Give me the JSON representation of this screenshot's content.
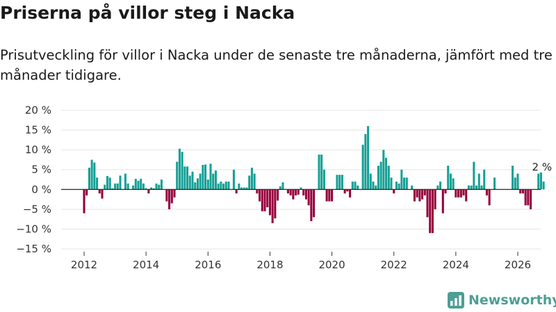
{
  "header": {
    "title": "Priserna på villor steg i Nacka",
    "subtitle": "Prisutveckling för villor i Nacka under de senaste tre månaderna, jämfört med tre månader tidigare."
  },
  "brand": {
    "name": "Newsworthy"
  },
  "colors": {
    "positive": "#16a096",
    "negative": "#96003c",
    "grid": "#e5e5e5",
    "zero": "#222222",
    "brand": "#4d9e95"
  },
  "chart_data": {
    "type": "bar",
    "title": "Priserna på villor steg i Nacka",
    "xlabel": "",
    "ylabel": "",
    "ylim": [
      -15,
      20
    ],
    "yticks": [
      20,
      15,
      10,
      5,
      0,
      -5,
      -10,
      -15
    ],
    "ytick_labels": [
      "20 %",
      "15 %",
      "10 %",
      "5 %",
      "0 %",
      "−5 %",
      "−10 %",
      "−15 %"
    ],
    "xticks": [
      2012,
      2014,
      2016,
      2018,
      2020,
      2022,
      2024,
      2026
    ],
    "xtick_labels": [
      "2012",
      "2014",
      "2016",
      "2018",
      "2020",
      "2022",
      "2024",
      "2026"
    ],
    "x_start": "2012-01",
    "x_interval": "month",
    "values": [
      -6,
      -1.5,
      5.5,
      7.5,
      6.8,
      3,
      -1,
      -2.3,
      1.2,
      3.4,
      3,
      0.3,
      1.5,
      1.5,
      3.5,
      0,
      4,
      1.5,
      0,
      1,
      2.7,
      2.2,
      2.7,
      1.5,
      0.3,
      -1,
      0.5,
      0.3,
      1.5,
      1.2,
      2.5,
      0,
      -3,
      -5,
      -3.5,
      -2,
      7,
      10.3,
      9.5,
      5.8,
      5.8,
      3.5,
      4.5,
      1.8,
      2.8,
      4,
      6.2,
      6.3,
      2.5,
      6.5,
      4,
      4.8,
      1.5,
      2,
      1.5,
      2,
      2,
      0,
      5,
      -1,
      1.5,
      0.5,
      0.5,
      0.5,
      3.5,
      5.5,
      4,
      -1,
      -3,
      -5.5,
      -5.5,
      -4.5,
      -6.5,
      -8.5,
      -7.3,
      -2.8,
      0.8,
      1.8,
      0,
      -1,
      -1.5,
      -2.5,
      -1.5,
      -1.3,
      0.5,
      -1.5,
      -2.5,
      -4,
      -8,
      -7,
      0,
      8.8,
      8.8,
      5,
      -3,
      -3,
      -3,
      0,
      3.7,
      3.7,
      3.7,
      -1,
      -0.5,
      -2,
      2,
      2,
      1,
      0,
      11.3,
      14,
      16,
      4,
      2,
      1,
      6,
      7,
      10,
      8,
      6,
      3,
      -1,
      2,
      1.5,
      5,
      3,
      3,
      0,
      1,
      -3,
      -2,
      -3,
      -2.5,
      -1.5,
      -7,
      -11,
      -11,
      -5,
      1,
      2,
      -6,
      -1,
      6,
      4,
      2.8,
      -2,
      -2,
      -2,
      -1.5,
      -3,
      1,
      1,
      7,
      1,
      4,
      1,
      5,
      -1.5,
      -4,
      0,
      3,
      0,
      0,
      0,
      0,
      0,
      0,
      6,
      3,
      4,
      -1,
      -1,
      -4,
      -4,
      -5,
      0,
      0,
      4,
      4.3,
      2
    ],
    "annotation": {
      "text": "2 %",
      "value": 2
    }
  }
}
